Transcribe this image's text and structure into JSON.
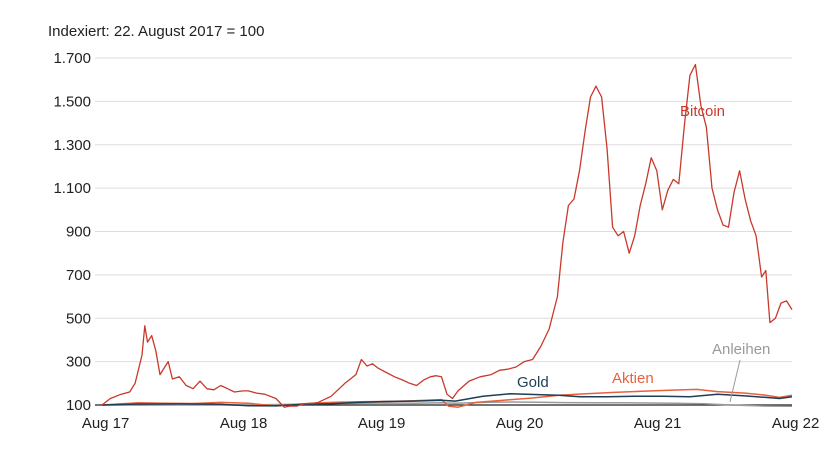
{
  "chart_data": {
    "type": "line",
    "subtitle": "Indexiert: 22. August 2017 = 100",
    "ylim": [
      100,
      1700
    ],
    "y_ticks": [
      100,
      300,
      500,
      700,
      900,
      1100,
      1300,
      1500,
      1700
    ],
    "y_tick_labels": [
      "100",
      "300",
      "500",
      "700",
      "900",
      "1.100",
      "1.300",
      "1.500",
      "1.700"
    ],
    "x_ticks": [
      {
        "x": 2017.666,
        "label": "Aug 17"
      },
      {
        "x": 2018.666,
        "label": "Aug 18"
      },
      {
        "x": 2019.666,
        "label": "Aug 19"
      },
      {
        "x": 2020.666,
        "label": "Aug 20"
      },
      {
        "x": 2021.666,
        "label": "Aug 21"
      },
      {
        "x": 2022.666,
        "label": "Aug 22"
      }
    ],
    "xlim": [
      2017.64,
      2022.64
    ],
    "grid": true,
    "series": [
      {
        "name": "Bitcoin",
        "color": "#c8392b",
        "points": [
          [
            2017.64,
            100
          ],
          [
            2017.7,
            130
          ],
          [
            2017.78,
            150
          ],
          [
            2017.84,
            160
          ],
          [
            2017.88,
            200
          ],
          [
            2017.93,
            330
          ],
          [
            2017.95,
            465
          ],
          [
            2017.97,
            390
          ],
          [
            2018.0,
            420
          ],
          [
            2018.03,
            350
          ],
          [
            2018.06,
            240
          ],
          [
            2018.09,
            270
          ],
          [
            2018.12,
            300
          ],
          [
            2018.15,
            220
          ],
          [
            2018.2,
            230
          ],
          [
            2018.25,
            190
          ],
          [
            2018.3,
            175
          ],
          [
            2018.35,
            210
          ],
          [
            2018.4,
            175
          ],
          [
            2018.45,
            170
          ],
          [
            2018.5,
            190
          ],
          [
            2018.55,
            175
          ],
          [
            2018.6,
            160
          ],
          [
            2018.66,
            165
          ],
          [
            2018.7,
            165
          ],
          [
            2018.76,
            155
          ],
          [
            2018.82,
            150
          ],
          [
            2018.9,
            130
          ],
          [
            2018.96,
            90
          ],
          [
            2019.0,
            95
          ],
          [
            2019.05,
            95
          ],
          [
            2019.1,
            105
          ],
          [
            2019.2,
            110
          ],
          [
            2019.3,
            140
          ],
          [
            2019.4,
            200
          ],
          [
            2019.48,
            240
          ],
          [
            2019.52,
            310
          ],
          [
            2019.56,
            280
          ],
          [
            2019.6,
            290
          ],
          [
            2019.64,
            270
          ],
          [
            2019.7,
            250
          ],
          [
            2019.76,
            230
          ],
          [
            2019.82,
            215
          ],
          [
            2019.87,
            200
          ],
          [
            2019.92,
            190
          ],
          [
            2019.97,
            215
          ],
          [
            2020.02,
            230
          ],
          [
            2020.06,
            235
          ],
          [
            2020.1,
            230
          ],
          [
            2020.14,
            150
          ],
          [
            2020.18,
            130
          ],
          [
            2020.22,
            165
          ],
          [
            2020.3,
            210
          ],
          [
            2020.38,
            230
          ],
          [
            2020.46,
            240
          ],
          [
            2020.52,
            260
          ],
          [
            2020.58,
            265
          ],
          [
            2020.64,
            275
          ],
          [
            2020.7,
            300
          ],
          [
            2020.76,
            310
          ],
          [
            2020.82,
            370
          ],
          [
            2020.88,
            450
          ],
          [
            2020.94,
            600
          ],
          [
            2020.98,
            850
          ],
          [
            2021.02,
            1020
          ],
          [
            2021.06,
            1050
          ],
          [
            2021.1,
            1180
          ],
          [
            2021.14,
            1360
          ],
          [
            2021.18,
            1520
          ],
          [
            2021.22,
            1570
          ],
          [
            2021.26,
            1520
          ],
          [
            2021.3,
            1280
          ],
          [
            2021.34,
            920
          ],
          [
            2021.38,
            880
          ],
          [
            2021.42,
            900
          ],
          [
            2021.46,
            800
          ],
          [
            2021.5,
            880
          ],
          [
            2021.54,
            1020
          ],
          [
            2021.58,
            1120
          ],
          [
            2021.62,
            1240
          ],
          [
            2021.66,
            1180
          ],
          [
            2021.7,
            1000
          ],
          [
            2021.74,
            1090
          ],
          [
            2021.78,
            1140
          ],
          [
            2021.82,
            1120
          ],
          [
            2021.86,
            1390
          ],
          [
            2021.9,
            1620
          ],
          [
            2021.94,
            1670
          ],
          [
            2021.98,
            1480
          ],
          [
            2022.02,
            1380
          ],
          [
            2022.06,
            1100
          ],
          [
            2022.1,
            1000
          ],
          [
            2022.14,
            930
          ],
          [
            2022.18,
            920
          ],
          [
            2022.22,
            1080
          ],
          [
            2022.26,
            1180
          ],
          [
            2022.3,
            1050
          ],
          [
            2022.34,
            950
          ],
          [
            2022.38,
            880
          ],
          [
            2022.42,
            690
          ],
          [
            2022.45,
            720
          ],
          [
            2022.48,
            480
          ],
          [
            2022.52,
            500
          ],
          [
            2022.56,
            570
          ],
          [
            2022.6,
            580
          ],
          [
            2022.64,
            540
          ]
        ]
      },
      {
        "name": "Gold",
        "color": "#1e3e55",
        "points": [
          [
            2017.64,
            100
          ],
          [
            2017.9,
            104
          ],
          [
            2018.2,
            105
          ],
          [
            2018.5,
            103
          ],
          [
            2018.7,
            97
          ],
          [
            2018.9,
            96
          ],
          [
            2019.1,
            103
          ],
          [
            2019.3,
            106
          ],
          [
            2019.5,
            112
          ],
          [
            2019.7,
            116
          ],
          [
            2019.9,
            118
          ],
          [
            2020.1,
            122
          ],
          [
            2020.2,
            118
          ],
          [
            2020.4,
            140
          ],
          [
            2020.6,
            152
          ],
          [
            2020.8,
            148
          ],
          [
            2020.95,
            145
          ],
          [
            2021.1,
            138
          ],
          [
            2021.3,
            138
          ],
          [
            2021.5,
            140
          ],
          [
            2021.7,
            140
          ],
          [
            2021.9,
            138
          ],
          [
            2022.1,
            150
          ],
          [
            2022.3,
            142
          ],
          [
            2022.45,
            135
          ],
          [
            2022.55,
            130
          ],
          [
            2022.64,
            138
          ]
        ]
      },
      {
        "name": "Aktien",
        "color": "#e8613c",
        "points": [
          [
            2017.64,
            100
          ],
          [
            2017.9,
            110
          ],
          [
            2018.1,
            108
          ],
          [
            2018.3,
            107
          ],
          [
            2018.5,
            112
          ],
          [
            2018.7,
            108
          ],
          [
            2018.9,
            96
          ],
          [
            2019.1,
            106
          ],
          [
            2019.3,
            112
          ],
          [
            2019.5,
            115
          ],
          [
            2019.7,
            116
          ],
          [
            2019.9,
            120
          ],
          [
            2020.1,
            125
          ],
          [
            2020.15,
            95
          ],
          [
            2020.22,
            90
          ],
          [
            2020.35,
            112
          ],
          [
            2020.55,
            122
          ],
          [
            2020.75,
            132
          ],
          [
            2020.95,
            145
          ],
          [
            2021.15,
            152
          ],
          [
            2021.35,
            158
          ],
          [
            2021.55,
            163
          ],
          [
            2021.75,
            168
          ],
          [
            2021.95,
            172
          ],
          [
            2022.1,
            162
          ],
          [
            2022.3,
            155
          ],
          [
            2022.45,
            145
          ],
          [
            2022.55,
            135
          ],
          [
            2022.64,
            145
          ]
        ]
      },
      {
        "name": "Anleihen",
        "color": "#9a9a9a",
        "points": [
          [
            2017.64,
            100
          ],
          [
            2017.9,
            102
          ],
          [
            2018.2,
            101
          ],
          [
            2018.5,
            100
          ],
          [
            2018.8,
            101
          ],
          [
            2019.1,
            104
          ],
          [
            2019.4,
            107
          ],
          [
            2019.7,
            109
          ],
          [
            2019.9,
            108
          ],
          [
            2020.1,
            110
          ],
          [
            2020.2,
            108
          ],
          [
            2020.4,
            112
          ],
          [
            2020.6,
            114
          ],
          [
            2020.8,
            113
          ],
          [
            2021.0,
            111
          ],
          [
            2021.2,
            110
          ],
          [
            2021.4,
            110
          ],
          [
            2021.6,
            109
          ],
          [
            2021.8,
            108
          ],
          [
            2022.0,
            106
          ],
          [
            2022.2,
            100
          ],
          [
            2022.4,
            96
          ],
          [
            2022.5,
            95
          ],
          [
            2022.64,
            94
          ]
        ]
      }
    ]
  }
}
